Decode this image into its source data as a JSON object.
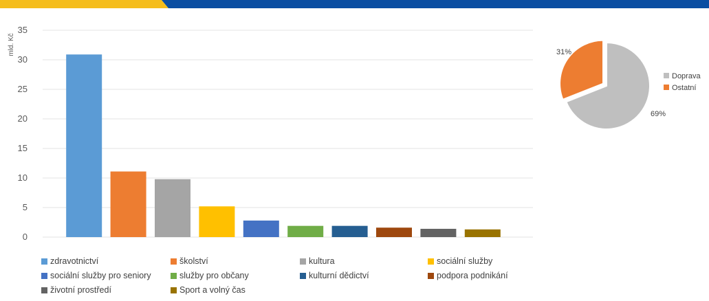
{
  "colors": {
    "band_yellow": "#F5BD1C",
    "band_blue": "#0B4EA2",
    "gridline": "#E3E3E3"
  },
  "chart_data": [
    {
      "type": "bar",
      "ylabel": "mld. Kč",
      "ylim": [
        0,
        35
      ],
      "yticks": [
        0,
        5,
        10,
        15,
        20,
        25,
        30,
        35
      ],
      "grid": true,
      "legend_position": "bottom",
      "categories": [
        "zdravotnictví",
        "školství",
        "kultura",
        "sociální služby",
        "sociální služby pro seniory",
        "služby pro občany",
        "kulturní dědictví",
        "podpora podnikání",
        "životní prostředí",
        "Sport a volný čas"
      ],
      "values": [
        30.9,
        11.1,
        9.8,
        5.2,
        2.8,
        1.9,
        1.9,
        1.6,
        1.4,
        1.3
      ],
      "colors": [
        "#5B9BD5",
        "#ED7D31",
        "#A5A5A5",
        "#FFC000",
        "#4472C4",
        "#70AD47",
        "#255E91",
        "#9E480E",
        "#636363",
        "#997300"
      ]
    },
    {
      "type": "pie",
      "legend_position": "right",
      "labels": [
        "Doprava",
        "Ostatní"
      ],
      "values": [
        69,
        31
      ],
      "value_labels": [
        "69%",
        "31%"
      ],
      "colors": [
        "#BFBFBF",
        "#ED7D31"
      ]
    }
  ]
}
